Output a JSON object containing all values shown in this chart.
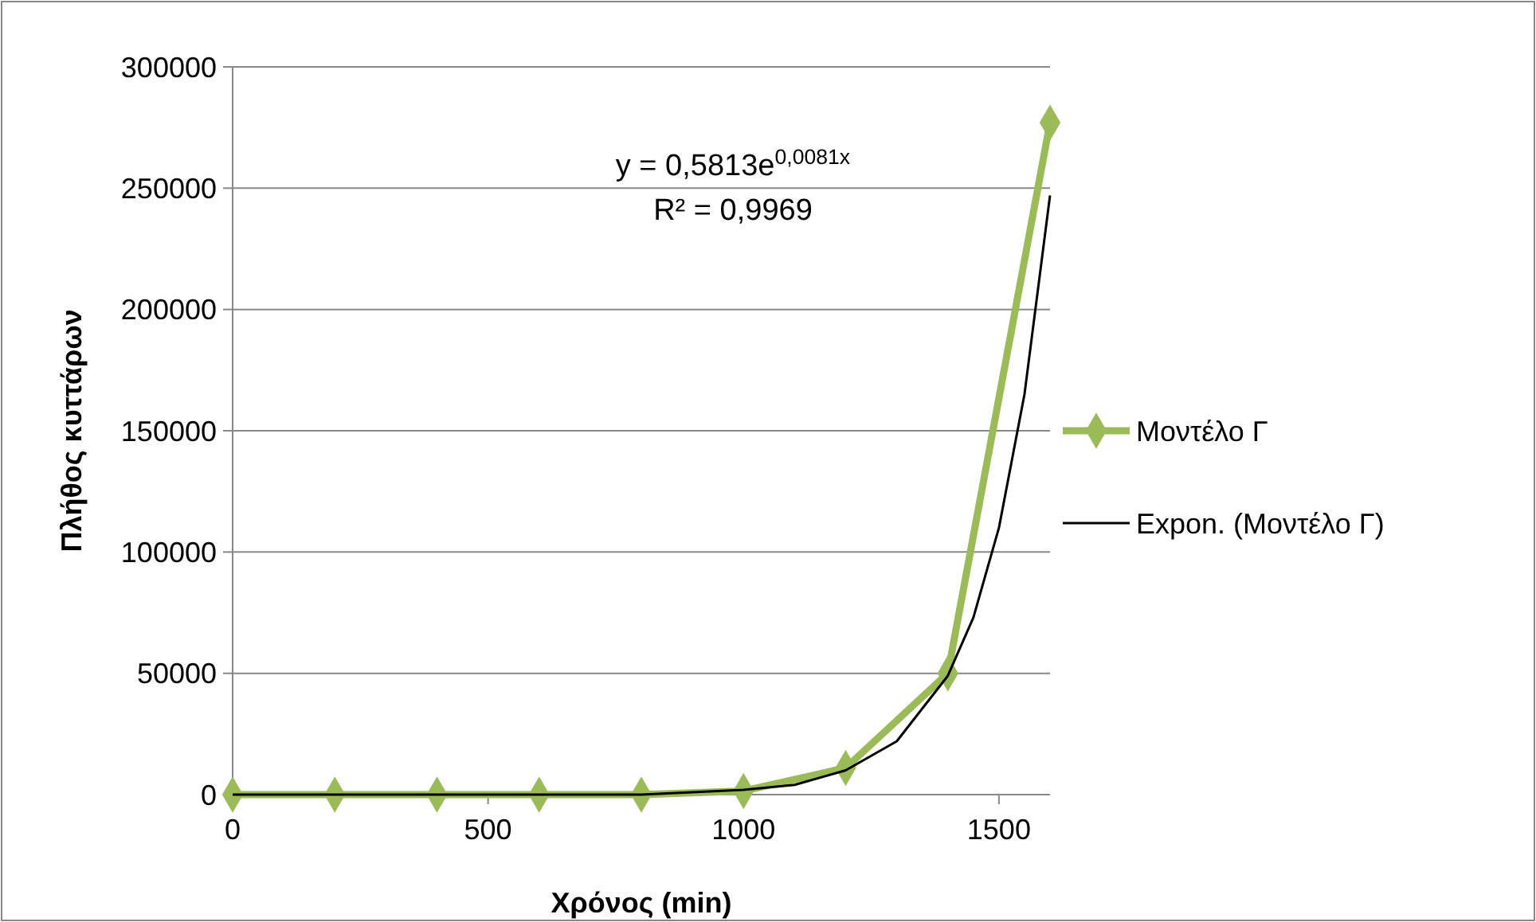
{
  "chart_data": {
    "type": "line",
    "xlabel": "Χρόνος (min)",
    "ylabel": "Πλήθος κυττάρων",
    "xlim": [
      0,
      1600
    ],
    "xticks": [
      0,
      500,
      1000,
      1500
    ],
    "ylim": [
      0,
      300000
    ],
    "yticks": [
      0,
      50000,
      100000,
      150000,
      200000,
      250000,
      300000
    ],
    "grid": "y",
    "legend": "right",
    "series": [
      {
        "name": "Μοντέλο Γ",
        "color": "#9bbb59",
        "marker": "diamond",
        "x": [
          0,
          200,
          400,
          600,
          800,
          1000,
          1200,
          1400,
          1600
        ],
        "values": [
          0,
          0,
          0,
          0,
          0,
          1500,
          11000,
          50000,
          277000
        ]
      },
      {
        "name": "Expon. (Μοντέλο Γ)",
        "color": "#000000",
        "marker": "none",
        "x": [
          0,
          400,
          800,
          1000,
          1100,
          1200,
          1300,
          1400,
          1450,
          1500,
          1550,
          1600
        ],
        "values": [
          0,
          0,
          0,
          2000,
          4000,
          10000,
          22000,
          49000,
          73000,
          110000,
          165000,
          247000
        ]
      }
    ],
    "annotations": [
      "y = 0,5813e$^{0,0081x}$",
      "R² = 0,9969"
    ]
  }
}
